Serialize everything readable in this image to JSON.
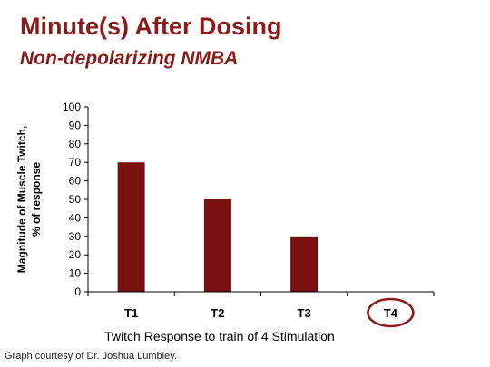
{
  "slide": {
    "title": "Minute(s) After Dosing",
    "subtitle": "Non-depolarizing NMBA",
    "footnote": "Graph courtesy of Dr. Joshua Lumbley."
  },
  "colors": {
    "accent": "#8b1a1a",
    "bar": "#7b1010",
    "axis": "#000000"
  },
  "chart_data": {
    "type": "bar",
    "categories": [
      "T1",
      "T2",
      "T3",
      "T4"
    ],
    "values": [
      70,
      50,
      30,
      0
    ],
    "highlighted_category": "T4",
    "xlabel": "Twitch Response to train of 4 Stimulation",
    "ylabel_lines": [
      "Magnitude of Muscle Twitch,",
      "% of response"
    ],
    "ylim": [
      0,
      100
    ],
    "yticks": [
      0,
      10,
      20,
      30,
      40,
      50,
      60,
      70,
      80,
      90,
      100
    ],
    "grid": false,
    "legend": "none"
  }
}
